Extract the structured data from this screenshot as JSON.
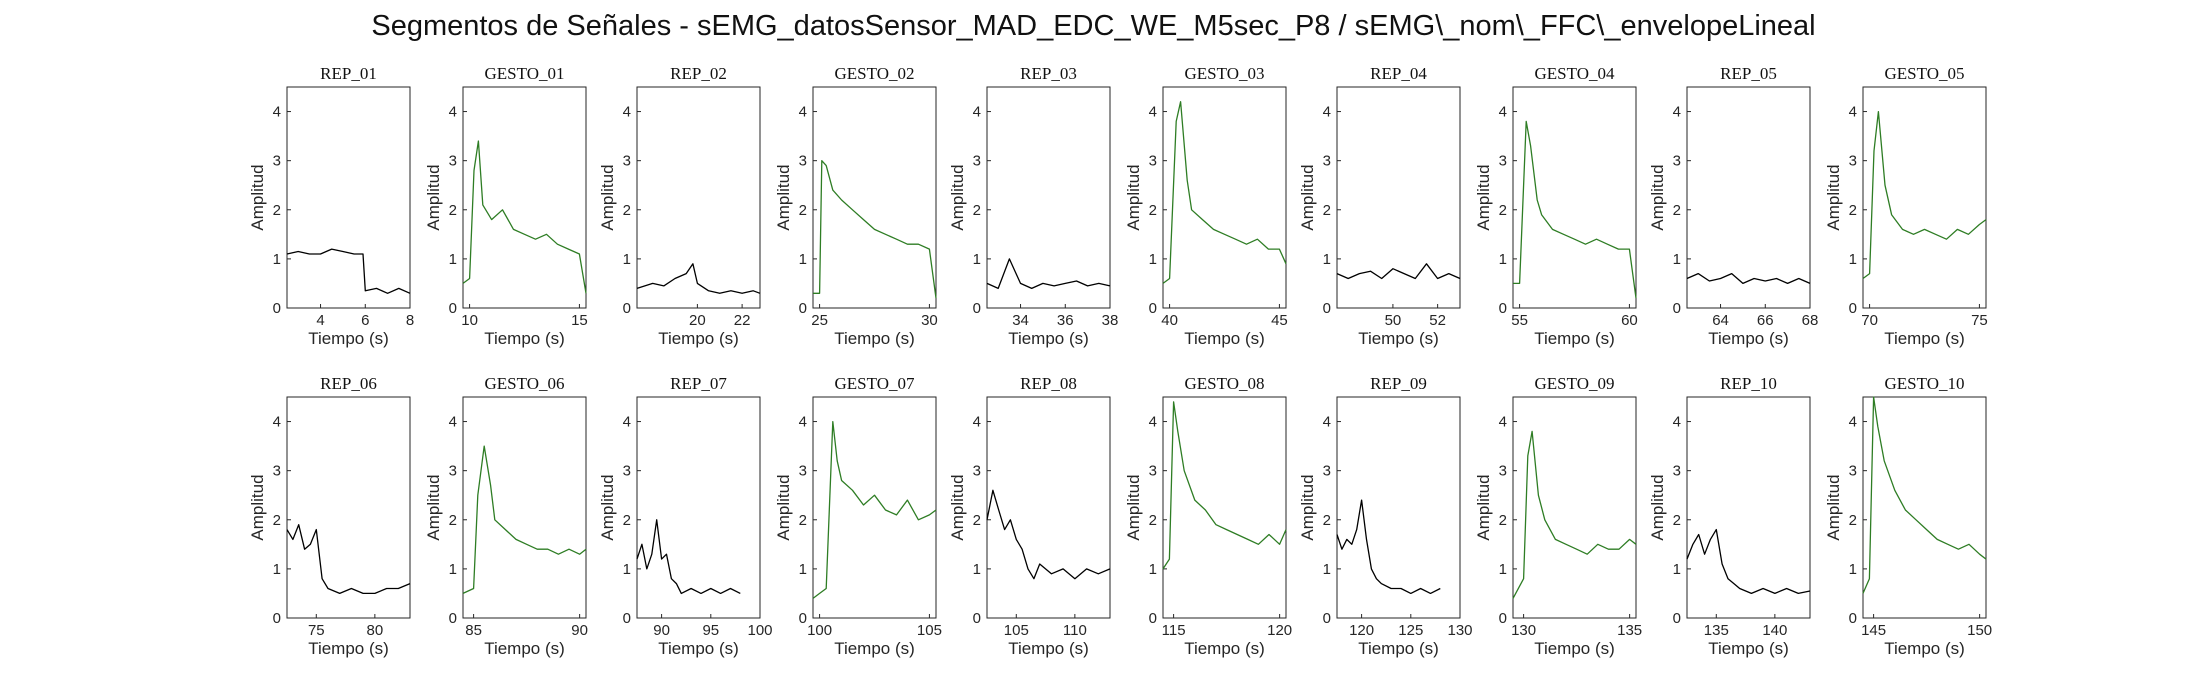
{
  "title": "Segmentos de Señales - sEMG_datosSensor_MAD_EDC_WE_M5sec_P8 / sEMG\\_nom\\_FFC\\_envelopeLineal",
  "colors": {
    "rep": "#000000",
    "gesto": "#2e7d24",
    "axis": "#262626"
  },
  "chart_data": [
    {
      "type": "line",
      "title": "REP_01",
      "xlabel": "Tiempo (s)",
      "ylabel": "Amplitud",
      "xlim": [
        2.5,
        8
      ],
      "ylim": [
        0,
        4.5
      ],
      "xticks": [
        4,
        6,
        8
      ],
      "yticks": [
        0,
        1,
        2,
        3,
        4
      ],
      "color": "rep",
      "x": [
        2.5,
        3,
        3.5,
        4,
        4.5,
        5,
        5.5,
        5.9,
        6,
        6.5,
        7,
        7.5,
        8
      ],
      "y": [
        1.1,
        1.15,
        1.1,
        1.1,
        1.2,
        1.15,
        1.1,
        1.1,
        0.35,
        0.4,
        0.3,
        0.4,
        0.3
      ]
    },
    {
      "type": "line",
      "title": "GESTO_01",
      "xlabel": "Tiempo (s)",
      "ylabel": "Amplitud",
      "xlim": [
        9.7,
        15.3
      ],
      "ylim": [
        0,
        4.5
      ],
      "xticks": [
        10,
        15
      ],
      "yticks": [
        0,
        1,
        2,
        3,
        4
      ],
      "color": "gesto",
      "x": [
        9.7,
        10,
        10.2,
        10.4,
        10.6,
        11,
        11.5,
        12,
        12.5,
        13,
        13.5,
        14,
        14.5,
        15,
        15.3
      ],
      "y": [
        0.5,
        0.6,
        2.8,
        3.4,
        2.1,
        1.8,
        2.0,
        1.6,
        1.5,
        1.4,
        1.5,
        1.3,
        1.2,
        1.1,
        0.3
      ]
    },
    {
      "type": "line",
      "title": "REP_02",
      "xlabel": "Tiempo (s)",
      "ylabel": "Amplitud",
      "xlim": [
        17.3,
        22.8
      ],
      "ylim": [
        0,
        4.5
      ],
      "xticks": [
        20,
        22
      ],
      "yticks": [
        0,
        1,
        2,
        3,
        4
      ],
      "color": "rep",
      "x": [
        17.3,
        18,
        18.5,
        19,
        19.5,
        19.8,
        20,
        20.5,
        21,
        21.5,
        22,
        22.5,
        22.8
      ],
      "y": [
        0.4,
        0.5,
        0.45,
        0.6,
        0.7,
        0.9,
        0.5,
        0.35,
        0.3,
        0.35,
        0.3,
        0.35,
        0.3
      ]
    },
    {
      "type": "line",
      "title": "GESTO_02",
      "xlabel": "Tiempo (s)",
      "ylabel": "Amplitud",
      "xlim": [
        24.7,
        30.3
      ],
      "ylim": [
        0,
        4.5
      ],
      "xticks": [
        25,
        30
      ],
      "yticks": [
        0,
        1,
        2,
        3,
        4
      ],
      "color": "gesto",
      "x": [
        24.7,
        25,
        25.1,
        25.3,
        25.6,
        26,
        26.5,
        27,
        27.5,
        28,
        28.5,
        29,
        29.5,
        30,
        30.3
      ],
      "y": [
        0.3,
        0.3,
        3.0,
        2.9,
        2.4,
        2.2,
        2.0,
        1.8,
        1.6,
        1.5,
        1.4,
        1.3,
        1.3,
        1.2,
        0.2
      ]
    },
    {
      "type": "line",
      "title": "REP_03",
      "xlabel": "Tiempo (s)",
      "ylabel": "Amplitud",
      "xlim": [
        32.5,
        38
      ],
      "ylim": [
        0,
        4.5
      ],
      "xticks": [
        34,
        36,
        38
      ],
      "yticks": [
        0,
        1,
        2,
        3,
        4
      ],
      "color": "rep",
      "x": [
        32.5,
        33,
        33.5,
        34,
        34.5,
        35,
        35.5,
        36,
        36.5,
        37,
        37.5,
        38
      ],
      "y": [
        0.5,
        0.4,
        1.0,
        0.5,
        0.4,
        0.5,
        0.45,
        0.5,
        0.55,
        0.45,
        0.5,
        0.45
      ]
    },
    {
      "type": "line",
      "title": "GESTO_03",
      "xlabel": "Tiempo (s)",
      "ylabel": "Amplitud",
      "xlim": [
        39.7,
        45.3
      ],
      "ylim": [
        0,
        4.5
      ],
      "xticks": [
        40,
        45
      ],
      "yticks": [
        0,
        1,
        2,
        3,
        4
      ],
      "color": "gesto",
      "x": [
        39.7,
        40,
        40.3,
        40.5,
        40.8,
        41,
        41.5,
        42,
        42.5,
        43,
        43.5,
        44,
        44.5,
        45,
        45.3
      ],
      "y": [
        0.5,
        0.6,
        3.8,
        4.2,
        2.6,
        2.0,
        1.8,
        1.6,
        1.5,
        1.4,
        1.3,
        1.4,
        1.2,
        1.2,
        0.9
      ]
    },
    {
      "type": "line",
      "title": "REP_04",
      "xlabel": "Tiempo (s)",
      "ylabel": "Amplitud",
      "xlim": [
        47.5,
        53
      ],
      "ylim": [
        0,
        4.5
      ],
      "xticks": [
        50,
        52
      ],
      "yticks": [
        0,
        1,
        2,
        3,
        4
      ],
      "color": "rep",
      "x": [
        47.5,
        48,
        48.5,
        49,
        49.5,
        50,
        50.5,
        51,
        51.5,
        52,
        52.5,
        53
      ],
      "y": [
        0.7,
        0.6,
        0.7,
        0.75,
        0.6,
        0.8,
        0.7,
        0.6,
        0.9,
        0.6,
        0.7,
        0.6
      ]
    },
    {
      "type": "line",
      "title": "GESTO_04",
      "xlabel": "Tiempo (s)",
      "ylabel": "Amplitud",
      "xlim": [
        54.7,
        60.3
      ],
      "ylim": [
        0,
        4.5
      ],
      "xticks": [
        55,
        60
      ],
      "yticks": [
        0,
        1,
        2,
        3,
        4
      ],
      "color": "gesto",
      "x": [
        54.7,
        55,
        55.3,
        55.5,
        55.8,
        56,
        56.5,
        57,
        57.5,
        58,
        58.5,
        59,
        59.5,
        60,
        60.3
      ],
      "y": [
        0.5,
        0.5,
        3.8,
        3.3,
        2.2,
        1.9,
        1.6,
        1.5,
        1.4,
        1.3,
        1.4,
        1.3,
        1.2,
        1.2,
        0.2
      ]
    },
    {
      "type": "line",
      "title": "REP_05",
      "xlabel": "Tiempo (s)",
      "ylabel": "Amplitud",
      "xlim": [
        62.5,
        68
      ],
      "ylim": [
        0,
        4.5
      ],
      "xticks": [
        64,
        66,
        68
      ],
      "yticks": [
        0,
        1,
        2,
        3,
        4
      ],
      "color": "rep",
      "x": [
        62.5,
        63,
        63.5,
        64,
        64.5,
        65,
        65.5,
        66,
        66.5,
        67,
        67.5,
        68
      ],
      "y": [
        0.6,
        0.7,
        0.55,
        0.6,
        0.7,
        0.5,
        0.6,
        0.55,
        0.6,
        0.5,
        0.6,
        0.5
      ]
    },
    {
      "type": "line",
      "title": "GESTO_05",
      "xlabel": "Tiempo (s)",
      "ylabel": "Amplitud",
      "xlim": [
        69.7,
        75.3
      ],
      "ylim": [
        0,
        4.5
      ],
      "xticks": [
        70,
        75
      ],
      "yticks": [
        0,
        1,
        2,
        3,
        4
      ],
      "color": "gesto",
      "x": [
        69.7,
        70,
        70.2,
        70.4,
        70.7,
        71,
        71.5,
        72,
        72.5,
        73,
        73.5,
        74,
        74.5,
        75,
        75.3
      ],
      "y": [
        0.6,
        0.7,
        3.2,
        4.0,
        2.5,
        1.9,
        1.6,
        1.5,
        1.6,
        1.5,
        1.4,
        1.6,
        1.5,
        1.7,
        1.8
      ]
    },
    {
      "type": "line",
      "title": "REP_06",
      "xlabel": "Tiempo (s)",
      "ylabel": "Amplitud",
      "xlim": [
        72.5,
        83
      ],
      "ylim": [
        0,
        4.5
      ],
      "xticks": [
        75,
        80
      ],
      "yticks": [
        0,
        1,
        2,
        3,
        4
      ],
      "color": "rep",
      "x": [
        72.5,
        73,
        73.5,
        74,
        74.5,
        75,
        75.5,
        76,
        77,
        78,
        79,
        80,
        81,
        82,
        83
      ],
      "y": [
        1.8,
        1.6,
        1.9,
        1.4,
        1.5,
        1.8,
        0.8,
        0.6,
        0.5,
        0.6,
        0.5,
        0.5,
        0.6,
        0.6,
        0.7
      ]
    },
    {
      "type": "line",
      "title": "GESTO_06",
      "xlabel": "Tiempo (s)",
      "ylabel": "Amplitud",
      "xlim": [
        84.5,
        90.3
      ],
      "ylim": [
        0,
        4.5
      ],
      "xticks": [
        85,
        90
      ],
      "yticks": [
        0,
        1,
        2,
        3,
        4
      ],
      "color": "gesto",
      "x": [
        84.5,
        85,
        85.2,
        85.5,
        85.8,
        86,
        86.5,
        87,
        87.5,
        88,
        88.5,
        89,
        89.5,
        90,
        90.3
      ],
      "y": [
        0.5,
        0.6,
        2.5,
        3.5,
        2.7,
        2.0,
        1.8,
        1.6,
        1.5,
        1.4,
        1.4,
        1.3,
        1.4,
        1.3,
        1.4
      ]
    },
    {
      "type": "line",
      "title": "REP_07",
      "xlabel": "Tiempo (s)",
      "ylabel": "Amplitud",
      "xlim": [
        87.5,
        100
      ],
      "ylim": [
        0,
        4.5
      ],
      "xticks": [
        90,
        95,
        100
      ],
      "yticks": [
        0,
        1,
        2,
        3,
        4
      ],
      "color": "rep",
      "x": [
        87.5,
        88,
        88.5,
        89,
        89.5,
        90,
        90.5,
        91,
        91.5,
        92,
        93,
        94,
        95,
        96,
        97,
        98
      ],
      "y": [
        1.2,
        1.5,
        1.0,
        1.3,
        2.0,
        1.2,
        1.3,
        0.8,
        0.7,
        0.5,
        0.6,
        0.5,
        0.6,
        0.5,
        0.6,
        0.5
      ]
    },
    {
      "type": "line",
      "title": "GESTO_07",
      "xlabel": "Tiempo (s)",
      "ylabel": "Amplitud",
      "xlim": [
        99.7,
        105.3
      ],
      "ylim": [
        0,
        4.5
      ],
      "xticks": [
        100,
        105
      ],
      "yticks": [
        0,
        1,
        2,
        3,
        4
      ],
      "color": "gesto",
      "x": [
        99.7,
        100,
        100.3,
        100.6,
        100.8,
        101,
        101.5,
        102,
        102.5,
        103,
        103.5,
        104,
        104.5,
        105,
        105.3
      ],
      "y": [
        0.4,
        0.5,
        0.6,
        4.0,
        3.2,
        2.8,
        2.6,
        2.3,
        2.5,
        2.2,
        2.1,
        2.4,
        2.0,
        2.1,
        2.2
      ]
    },
    {
      "type": "line",
      "title": "REP_08",
      "xlabel": "Tiempo (s)",
      "ylabel": "Amplitud",
      "xlim": [
        102.5,
        113
      ],
      "ylim": [
        0,
        4.5
      ],
      "xticks": [
        105,
        110
      ],
      "yticks": [
        0,
        1,
        2,
        3,
        4
      ],
      "color": "rep",
      "x": [
        102.5,
        103,
        103.5,
        104,
        104.5,
        105,
        105.5,
        106,
        106.5,
        107,
        108,
        109,
        110,
        111,
        112,
        113
      ],
      "y": [
        2.0,
        2.6,
        2.2,
        1.8,
        2.0,
        1.6,
        1.4,
        1.0,
        0.8,
        1.1,
        0.9,
        1.0,
        0.8,
        1.0,
        0.9,
        1.0
      ]
    },
    {
      "type": "line",
      "title": "GESTO_08",
      "xlabel": "Tiempo (s)",
      "ylabel": "Amplitud",
      "xlim": [
        114.5,
        120.3
      ],
      "ylim": [
        0,
        4.5
      ],
      "xticks": [
        115,
        120
      ],
      "yticks": [
        0,
        1,
        2,
        3,
        4
      ],
      "color": "gesto",
      "x": [
        114.5,
        114.8,
        115,
        115.2,
        115.5,
        116,
        116.5,
        117,
        117.5,
        118,
        118.5,
        119,
        119.5,
        120,
        120.3
      ],
      "y": [
        1.0,
        1.2,
        4.4,
        3.8,
        3.0,
        2.4,
        2.2,
        1.9,
        1.8,
        1.7,
        1.6,
        1.5,
        1.7,
        1.5,
        1.8
      ]
    },
    {
      "type": "line",
      "title": "REP_09",
      "xlabel": "Tiempo (s)",
      "ylabel": "Amplitud",
      "xlim": [
        117.5,
        130
      ],
      "ylim": [
        0,
        4.5
      ],
      "xticks": [
        120,
        125,
        130
      ],
      "yticks": [
        0,
        1,
        2,
        3,
        4
      ],
      "color": "rep",
      "x": [
        117.5,
        118,
        118.5,
        119,
        119.5,
        120,
        120.5,
        121,
        121.5,
        122,
        123,
        124,
        125,
        126,
        127,
        128
      ],
      "y": [
        1.7,
        1.4,
        1.6,
        1.5,
        1.8,
        2.4,
        1.6,
        1.0,
        0.8,
        0.7,
        0.6,
        0.6,
        0.5,
        0.6,
        0.5,
        0.6
      ]
    },
    {
      "type": "line",
      "title": "GESTO_09",
      "xlabel": "Tiempo (s)",
      "ylabel": "Amplitud",
      "xlim": [
        129.5,
        135.3
      ],
      "ylim": [
        0,
        4.5
      ],
      "xticks": [
        130,
        135
      ],
      "yticks": [
        0,
        1,
        2,
        3,
        4
      ],
      "color": "gesto",
      "x": [
        129.5,
        130,
        130.2,
        130.4,
        130.7,
        131,
        131.5,
        132,
        132.5,
        133,
        133.5,
        134,
        134.5,
        135,
        135.3
      ],
      "y": [
        0.4,
        0.8,
        3.3,
        3.8,
        2.5,
        2.0,
        1.6,
        1.5,
        1.4,
        1.3,
        1.5,
        1.4,
        1.4,
        1.6,
        1.5
      ]
    },
    {
      "type": "line",
      "title": "REP_10",
      "xlabel": "Tiempo (s)",
      "ylabel": "Amplitud",
      "xlim": [
        132.5,
        143
      ],
      "ylim": [
        0,
        4.5
      ],
      "xticks": [
        135,
        140
      ],
      "yticks": [
        0,
        1,
        2,
        3,
        4
      ],
      "color": "rep",
      "x": [
        132.5,
        133,
        133.5,
        134,
        134.5,
        135,
        135.5,
        136,
        136.5,
        137,
        138,
        139,
        140,
        141,
        142,
        143
      ],
      "y": [
        1.2,
        1.5,
        1.7,
        1.3,
        1.6,
        1.8,
        1.1,
        0.8,
        0.7,
        0.6,
        0.5,
        0.6,
        0.5,
        0.6,
        0.5,
        0.55
      ]
    },
    {
      "type": "line",
      "title": "GESTO_10",
      "xlabel": "Tiempo (s)",
      "ylabel": "Amplitud",
      "xlim": [
        144.5,
        150.3
      ],
      "ylim": [
        0,
        4.5
      ],
      "xticks": [
        145,
        150
      ],
      "yticks": [
        0,
        1,
        2,
        3,
        4
      ],
      "color": "gesto",
      "x": [
        144.5,
        144.8,
        145,
        145.2,
        145.5,
        146,
        146.5,
        147,
        147.5,
        148,
        148.5,
        149,
        149.5,
        150,
        150.3
      ],
      "y": [
        0.5,
        0.8,
        4.5,
        3.9,
        3.2,
        2.6,
        2.2,
        2.0,
        1.8,
        1.6,
        1.5,
        1.4,
        1.5,
        1.3,
        1.2
      ]
    }
  ]
}
